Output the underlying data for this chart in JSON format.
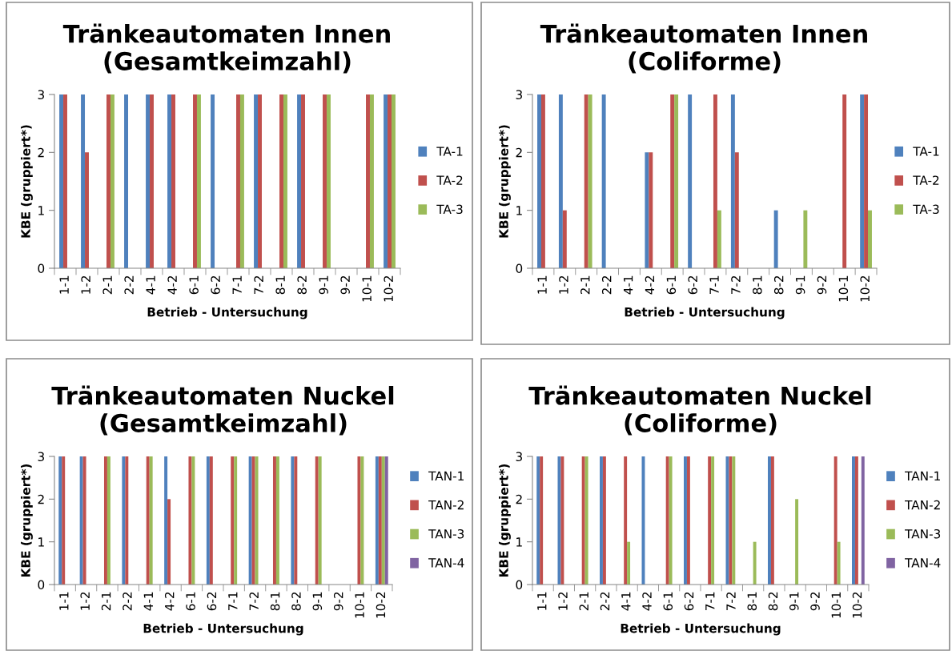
{
  "chart_data": [
    {
      "type": "bar",
      "title": "Tränkeautomaten Innen\n(Gesamtkeimzahl)",
      "xlabel": "Betrieb - Untersuchung",
      "ylabel": "KBE (gruppiert*)",
      "categories": [
        "1-1",
        "1-2",
        "2-1",
        "2-2",
        "4-1",
        "4-2",
        "6-1",
        "6-2",
        "7-1",
        "7-2",
        "8-1",
        "8-2",
        "9-1",
        "9-2",
        "10-1",
        "10-2"
      ],
      "ylim": [
        0,
        3
      ],
      "yticks": [
        0,
        1,
        2,
        3
      ],
      "legend": "right",
      "series": [
        {
          "name": "TA-1",
          "color": "#4f81bd",
          "values": [
            3,
            3,
            null,
            3,
            3,
            3,
            null,
            3,
            null,
            3,
            null,
            3,
            null,
            null,
            null,
            3
          ]
        },
        {
          "name": "TA-2",
          "color": "#c0504d",
          "values": [
            3,
            2,
            3,
            null,
            3,
            3,
            3,
            null,
            3,
            3,
            3,
            3,
            3,
            null,
            3,
            3
          ]
        },
        {
          "name": "TA-3",
          "color": "#9bbb59",
          "values": [
            null,
            null,
            3,
            null,
            null,
            null,
            3,
            null,
            3,
            null,
            3,
            null,
            3,
            null,
            3,
            3
          ]
        }
      ]
    },
    {
      "type": "bar",
      "title": "Tränkeautomaten Innen\n(Coliforme)",
      "xlabel": "Betrieb - Untersuchung",
      "ylabel": "KBE (gruppiert*)",
      "categories": [
        "1-1",
        "1-2",
        "2-1",
        "2-2",
        "4-1",
        "4-2",
        "6-1",
        "6-2",
        "7-1",
        "7-2",
        "8-1",
        "8-2",
        "9-1",
        "9-2",
        "10-1",
        "10-2"
      ],
      "ylim": [
        0,
        3
      ],
      "yticks": [
        0,
        1,
        2,
        3
      ],
      "legend": "right",
      "series": [
        {
          "name": "TA-1",
          "color": "#4f81bd",
          "values": [
            3,
            3,
            null,
            3,
            null,
            2,
            null,
            3,
            null,
            3,
            null,
            1,
            null,
            null,
            null,
            3
          ]
        },
        {
          "name": "TA-2",
          "color": "#c0504d",
          "values": [
            3,
            1,
            3,
            null,
            null,
            2,
            3,
            null,
            3,
            2,
            null,
            null,
            null,
            null,
            3,
            3
          ]
        },
        {
          "name": "TA-3",
          "color": "#9bbb59",
          "values": [
            null,
            null,
            3,
            null,
            null,
            null,
            3,
            null,
            1,
            null,
            null,
            null,
            1,
            null,
            null,
            1
          ]
        }
      ]
    },
    {
      "type": "bar",
      "title": "Tränkeautomaten Nuckel\n(Gesamtkeimzahl)",
      "xlabel": "Betrieb - Untersuchung",
      "ylabel": "KBE (gruppiert*)",
      "categories": [
        "1-1",
        "1-2",
        "2-1",
        "2-2",
        "4-1",
        "4-2",
        "6-1",
        "6-2",
        "7-1",
        "7-2",
        "8-1",
        "8-2",
        "9-1",
        "9-2",
        "10-1",
        "10-2"
      ],
      "ylim": [
        0,
        3
      ],
      "yticks": [
        0,
        1,
        2,
        3
      ],
      "legend": "right",
      "series": [
        {
          "name": "TAN-1",
          "color": "#4f81bd",
          "values": [
            3,
            3,
            null,
            3,
            null,
            3,
            null,
            3,
            null,
            3,
            null,
            3,
            null,
            null,
            null,
            3
          ]
        },
        {
          "name": "TAN-2",
          "color": "#c0504d",
          "values": [
            3,
            3,
            3,
            3,
            3,
            2,
            3,
            3,
            3,
            3,
            3,
            3,
            3,
            null,
            3,
            3
          ]
        },
        {
          "name": "TAN-3",
          "color": "#9bbb59",
          "values": [
            null,
            null,
            3,
            null,
            3,
            null,
            3,
            null,
            3,
            3,
            3,
            null,
            3,
            null,
            3,
            3
          ]
        },
        {
          "name": "TAN-4",
          "color": "#8064a2",
          "values": [
            null,
            null,
            null,
            null,
            null,
            null,
            null,
            null,
            null,
            null,
            null,
            null,
            null,
            null,
            null,
            3
          ]
        }
      ]
    },
    {
      "type": "bar",
      "title": "Tränkeautomaten Nuckel\n(Coliforme)",
      "xlabel": "Betrieb - Untersuchung",
      "ylabel": "KBE (gruppiert*)",
      "categories": [
        "1-1",
        "1-2",
        "2-1",
        "2-2",
        "4-1",
        "4-2",
        "6-1",
        "6-2",
        "7-1",
        "7-2",
        "8-1",
        "8-2",
        "9-1",
        "9-2",
        "10-1",
        "10-2"
      ],
      "ylim": [
        0,
        3
      ],
      "yticks": [
        0,
        1,
        2,
        3
      ],
      "legend": "right",
      "series": [
        {
          "name": "TAN-1",
          "color": "#4f81bd",
          "values": [
            3,
            3,
            null,
            3,
            null,
            3,
            null,
            3,
            null,
            3,
            null,
            3,
            null,
            null,
            null,
            3
          ]
        },
        {
          "name": "TAN-2",
          "color": "#c0504d",
          "values": [
            3,
            3,
            3,
            3,
            3,
            null,
            3,
            3,
            3,
            3,
            null,
            3,
            null,
            null,
            3,
            3
          ]
        },
        {
          "name": "TAN-3",
          "color": "#9bbb59",
          "values": [
            null,
            null,
            3,
            null,
            1,
            null,
            3,
            null,
            3,
            3,
            1,
            null,
            2,
            null,
            1,
            null
          ]
        },
        {
          "name": "TAN-4",
          "color": "#8064a2",
          "values": [
            null,
            null,
            null,
            null,
            null,
            null,
            null,
            null,
            null,
            null,
            null,
            null,
            null,
            null,
            null,
            3
          ]
        }
      ]
    }
  ]
}
